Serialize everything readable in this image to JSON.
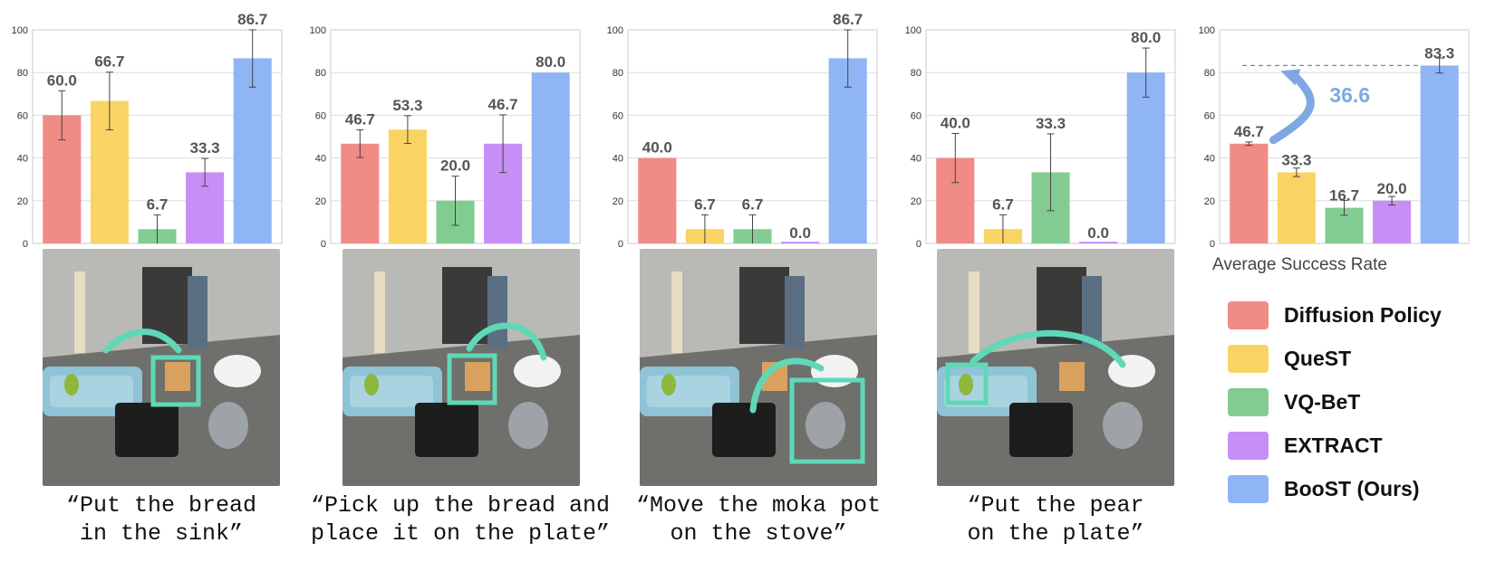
{
  "colors": {
    "Diffusion Policy": "#f08b85",
    "QueST": "#f9d464",
    "VQ-BeT": "#82cc92",
    "EXTRACT": "#c78ef5",
    "BooST (Ours)": "#8fb5f5",
    "arrow": "#5fd8b8",
    "gain_arrow": "#7fa8e3"
  },
  "chart_data": [
    {
      "type": "bar",
      "categories": [
        "Diffusion Policy",
        "QueST",
        "VQ-BeT",
        "EXTRACT",
        "BooST (Ours)"
      ],
      "values": [
        60.0,
        66.7,
        6.7,
        33.3,
        86.7
      ],
      "errors": [
        11.5,
        13.5,
        6.7,
        6.5,
        13.5
      ],
      "value_labels": [
        "60.0",
        "66.7",
        "6.7",
        "33.3",
        "86.7"
      ],
      "ylim": [
        0,
        100
      ],
      "yticks": [
        "0",
        "20",
        "40",
        "60",
        "80",
        "100"
      ],
      "grid": true,
      "xlabel": "",
      "ylabel": ""
    },
    {
      "type": "bar",
      "categories": [
        "Diffusion Policy",
        "QueST",
        "VQ-BeT",
        "EXTRACT",
        "BooST (Ours)"
      ],
      "values": [
        46.7,
        53.3,
        20.0,
        46.7,
        80.0
      ],
      "errors": [
        6.5,
        6.5,
        11.5,
        13.5,
        0.0
      ],
      "value_labels": [
        "46.7",
        "53.3",
        "20.0",
        "46.7",
        "80.0"
      ],
      "ylim": [
        0,
        100
      ],
      "yticks": [
        "0",
        "20",
        "40",
        "60",
        "80",
        "100"
      ],
      "grid": true,
      "xlabel": "",
      "ylabel": ""
    },
    {
      "type": "bar",
      "categories": [
        "Diffusion Policy",
        "QueST",
        "VQ-BeT",
        "EXTRACT",
        "BooST (Ours)"
      ],
      "values": [
        40.0,
        6.7,
        6.7,
        0.0,
        86.7
      ],
      "errors": [
        0.0,
        6.7,
        6.7,
        0.0,
        13.5
      ],
      "value_labels": [
        "40.0",
        "6.7",
        "6.7",
        "0.0",
        "86.7"
      ],
      "ylim": [
        0,
        100
      ],
      "yticks": [
        "0",
        "20",
        "40",
        "60",
        "80",
        "100"
      ],
      "grid": true,
      "xlabel": "",
      "ylabel": ""
    },
    {
      "type": "bar",
      "categories": [
        "Diffusion Policy",
        "QueST",
        "VQ-BeT",
        "EXTRACT",
        "BooST (Ours)"
      ],
      "values": [
        40.0,
        6.7,
        33.3,
        0.0,
        80.0
      ],
      "errors": [
        11.5,
        6.7,
        18.0,
        0.0,
        11.5
      ],
      "value_labels": [
        "40.0",
        "6.7",
        "33.3",
        "0.0",
        "80.0"
      ],
      "ylim": [
        0,
        100
      ],
      "yticks": [
        "0",
        "20",
        "40",
        "60",
        "80",
        "100"
      ],
      "grid": true,
      "xlabel": "",
      "ylabel": ""
    },
    {
      "type": "bar",
      "categories": [
        "Diffusion Policy",
        "QueST",
        "VQ-BeT",
        "EXTRACT",
        "BooST (Ours)"
      ],
      "values": [
        46.7,
        33.3,
        16.7,
        20.0,
        83.3
      ],
      "errors": [
        0.8,
        2.0,
        3.5,
        2.0,
        3.5
      ],
      "value_labels": [
        "46.7",
        "33.3",
        "16.7",
        "20.0",
        "83.3"
      ],
      "ylim": [
        0,
        100
      ],
      "yticks": [
        "0",
        "20",
        "40",
        "60",
        "80",
        "100"
      ],
      "grid": true,
      "xlabel": "Average Success Rate",
      "ylabel": "",
      "annotation": "36.6",
      "reference_line_value": 83.3
    }
  ],
  "tasks": [
    {
      "caption": "“Put the bread\n in the sink”"
    },
    {
      "caption": "“Pick up the bread and\nplace it on the plate”"
    },
    {
      "caption": "“Move the moka pot\non the stove”"
    },
    {
      "caption": "“Put the pear\non the plate”"
    }
  ],
  "legend": {
    "position": "right",
    "items": [
      "Diffusion Policy",
      "QueST",
      "VQ-BeT",
      "EXTRACT",
      "BooST (Ours)"
    ]
  }
}
